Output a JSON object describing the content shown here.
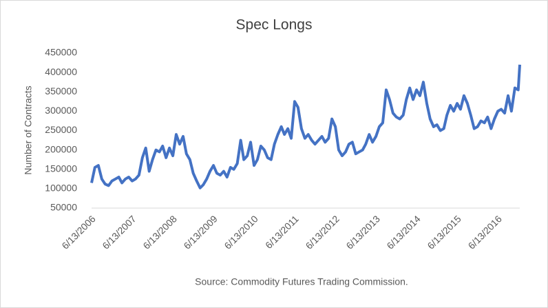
{
  "chart_data": {
    "type": "line",
    "title": "Spec Longs",
    "y_label": "Number of Contracts",
    "source": "Source: Commodity Futures Trading Commission.",
    "x": [
      "6/13/2006",
      "7/13/2006",
      "8/13/2006",
      "9/13/2006",
      "10/13/2006",
      "11/13/2006",
      "12/13/2006",
      "1/13/2007",
      "2/13/2007",
      "3/13/2007",
      "4/13/2007",
      "5/13/2007",
      "6/13/2007",
      "7/13/2007",
      "8/13/2007",
      "9/13/2007",
      "10/13/2007",
      "11/13/2007",
      "12/13/2007",
      "1/13/2008",
      "2/13/2008",
      "3/13/2008",
      "4/13/2008",
      "5/13/2008",
      "6/13/2008",
      "7/13/2008",
      "8/13/2008",
      "9/13/2008",
      "10/13/2008",
      "11/13/2008",
      "12/13/2008",
      "1/13/2009",
      "2/13/2009",
      "3/13/2009",
      "4/13/2009",
      "5/13/2009",
      "6/13/2009",
      "7/13/2009",
      "8/13/2009",
      "9/13/2009",
      "10/13/2009",
      "11/13/2009",
      "12/13/2009",
      "1/13/2010",
      "2/13/2010",
      "3/13/2010",
      "4/13/2010",
      "5/13/2010",
      "6/13/2010",
      "7/13/2010",
      "8/13/2010",
      "9/13/2010",
      "10/13/2010",
      "11/13/2010",
      "12/13/2010",
      "1/13/2011",
      "2/13/2011",
      "3/13/2011",
      "4/13/2011",
      "5/13/2011",
      "6/13/2011",
      "7/13/2011",
      "8/13/2011",
      "9/13/2011",
      "10/13/2011",
      "11/13/2011",
      "12/13/2011",
      "1/13/2012",
      "2/13/2012",
      "3/13/2012",
      "4/13/2012",
      "5/13/2012",
      "6/13/2012",
      "7/13/2012",
      "8/13/2012",
      "9/13/2012",
      "10/13/2012",
      "11/13/2012",
      "12/13/2012",
      "1/13/2013",
      "2/13/2013",
      "3/13/2013",
      "4/13/2013",
      "5/13/2013",
      "6/13/2013",
      "7/13/2013",
      "8/13/2013",
      "9/13/2013",
      "10/13/2013",
      "11/13/2013",
      "12/13/2013",
      "1/13/2014",
      "2/13/2014",
      "3/13/2014",
      "4/13/2014",
      "5/13/2014",
      "6/13/2014",
      "7/13/2014",
      "8/13/2014",
      "9/13/2014",
      "10/13/2014",
      "11/13/2014",
      "12/13/2014",
      "1/13/2015",
      "2/13/2015",
      "3/13/2015",
      "4/13/2015",
      "5/13/2015",
      "6/13/2015",
      "7/13/2015",
      "8/13/2015",
      "9/13/2015",
      "10/13/2015",
      "11/13/2015",
      "12/13/2015",
      "1/13/2016",
      "2/13/2016",
      "3/13/2016",
      "4/13/2016",
      "5/13/2016",
      "6/13/2016",
      "7/13/2016",
      "8/13/2016",
      "9/13/2016",
      "10/13/2016",
      "11/13/2016",
      "12/13/2016",
      "12/27/2016"
    ],
    "series": [
      {
        "name": "Spec Longs",
        "color": "#4472c4",
        "values": [
          115000,
          155000,
          160000,
          125000,
          112000,
          108000,
          120000,
          125000,
          130000,
          115000,
          125000,
          130000,
          120000,
          125000,
          135000,
          180000,
          205000,
          145000,
          175000,
          200000,
          195000,
          210000,
          180000,
          205000,
          185000,
          240000,
          215000,
          235000,
          190000,
          175000,
          140000,
          120000,
          102000,
          110000,
          125000,
          145000,
          160000,
          140000,
          135000,
          145000,
          130000,
          155000,
          150000,
          165000,
          225000,
          175000,
          185000,
          220000,
          160000,
          175000,
          210000,
          200000,
          180000,
          175000,
          215000,
          240000,
          260000,
          240000,
          255000,
          230000,
          325000,
          310000,
          255000,
          230000,
          240000,
          225000,
          215000,
          225000,
          235000,
          220000,
          230000,
          280000,
          260000,
          200000,
          185000,
          195000,
          215000,
          220000,
          190000,
          195000,
          200000,
          215000,
          240000,
          220000,
          235000,
          260000,
          270000,
          355000,
          330000,
          295000,
          285000,
          280000,
          290000,
          330000,
          360000,
          330000,
          355000,
          340000,
          375000,
          320000,
          280000,
          260000,
          265000,
          250000,
          255000,
          290000,
          315000,
          300000,
          320000,
          305000,
          340000,
          320000,
          290000,
          255000,
          260000,
          275000,
          270000,
          285000,
          255000,
          280000,
          300000,
          305000,
          295000,
          340000,
          300000,
          360000,
          355000,
          420000
        ]
      }
    ],
    "xlim": [
      "6/13/2006",
      "12/27/2016"
    ],
    "xticks": [
      "6/13/2006",
      "6/13/2007",
      "6/13/2008",
      "6/13/2009",
      "6/13/2010",
      "6/13/2011",
      "6/13/2012",
      "6/13/2013",
      "6/13/2014",
      "6/13/2015",
      "6/13/2016"
    ],
    "ylim": [
      50000,
      450000
    ],
    "yticks": [
      50000,
      100000,
      150000,
      200000,
      250000,
      300000,
      350000,
      400000,
      450000
    ]
  }
}
